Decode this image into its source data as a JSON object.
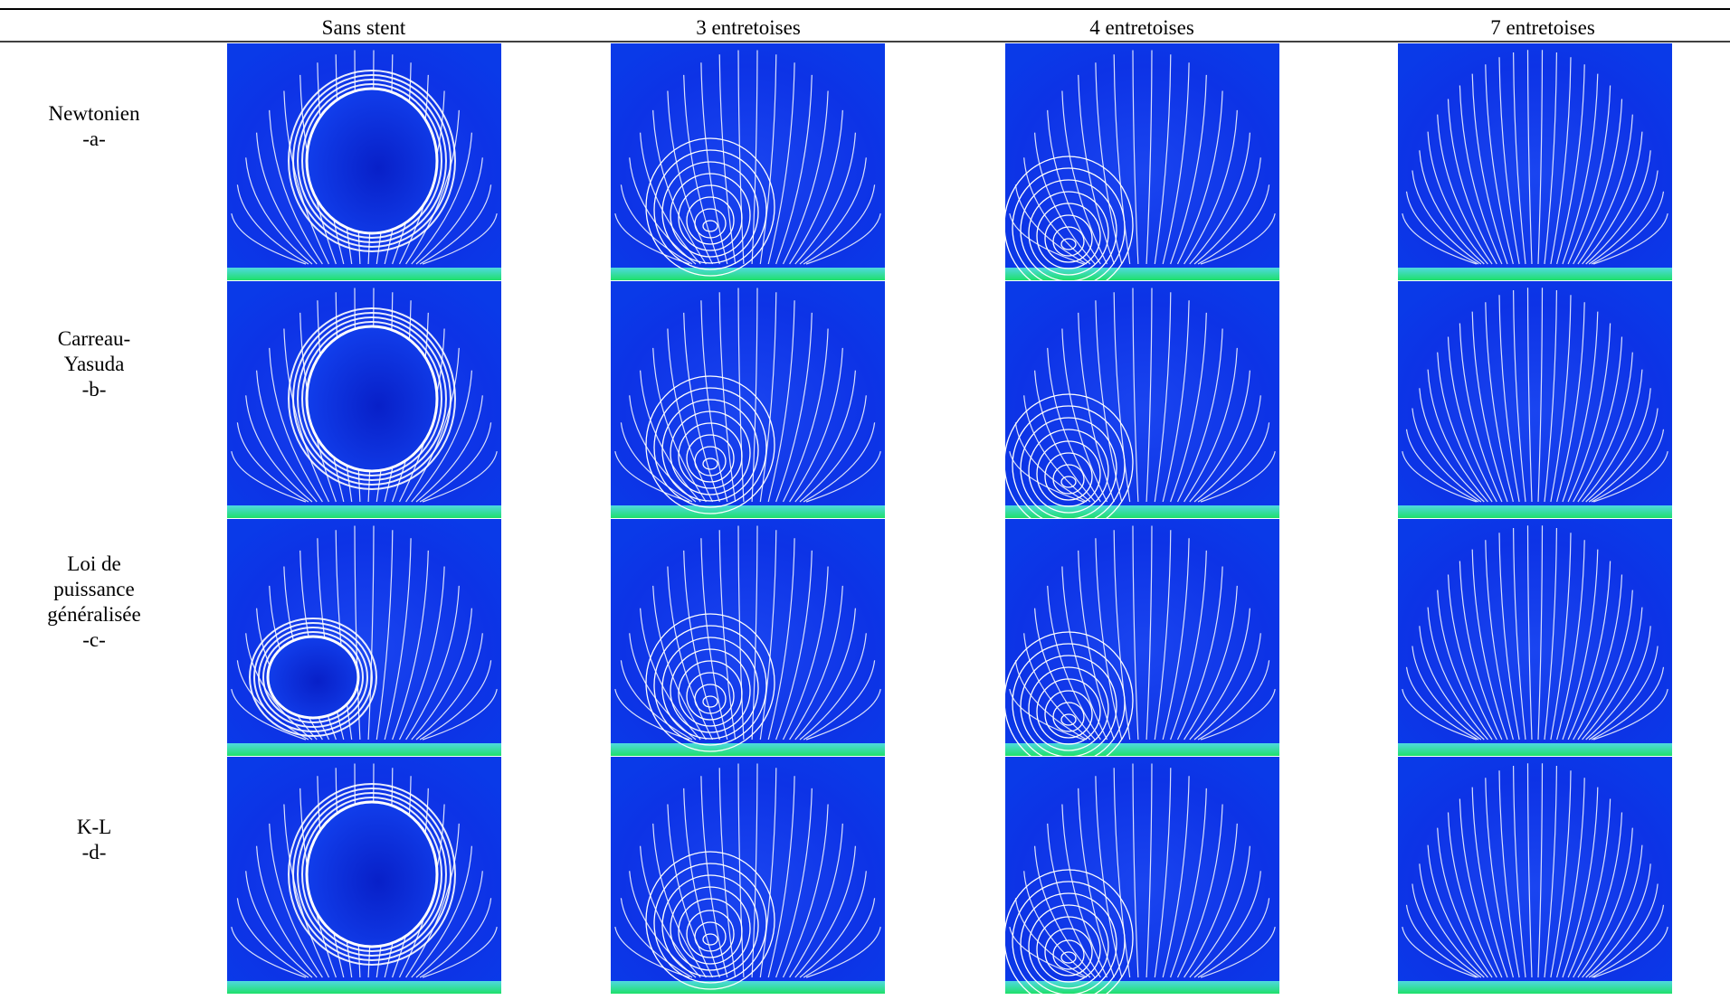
{
  "table": {
    "columns": [
      "Sans stent",
      "3 entretoises",
      "4 entretoises",
      "7 entretoises"
    ],
    "rows": [
      {
        "label_lines": [
          "Newtonien",
          "-a-"
        ]
      },
      {
        "label_lines": [
          "Carreau-",
          "Yasuda",
          "-b-"
        ]
      },
      {
        "label_lines": [
          "Loi de",
          "puissance",
          "généralisée",
          "-c-"
        ]
      },
      {
        "label_lines": [
          "K-L",
          "-d-"
        ]
      }
    ]
  }
}
